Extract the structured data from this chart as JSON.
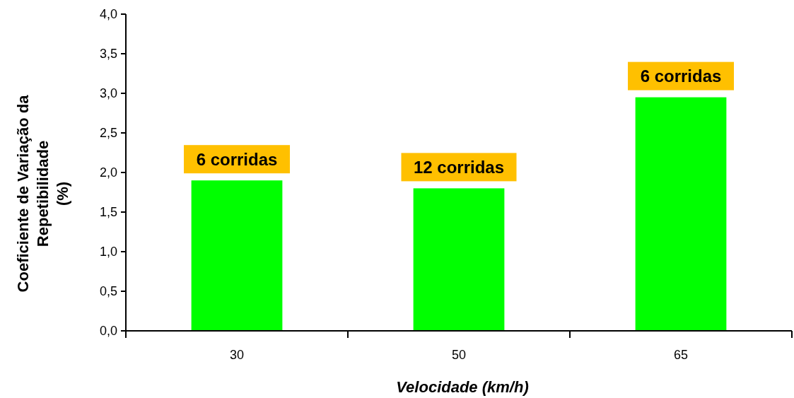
{
  "chart_data": {
    "type": "bar",
    "xlabel": "Velocidade (km/h)",
    "ylabel": "Coeficiente de Variação da\nRepetibilidade\n(%)",
    "categories": [
      "30",
      "50",
      "65"
    ],
    "values": [
      1.9,
      1.8,
      2.95
    ],
    "color": "#00ff00",
    "ylim": [
      0,
      4
    ],
    "yticks": [
      {
        "value": 0,
        "label": "0,0"
      },
      {
        "value": 0.5,
        "label": "0,5"
      },
      {
        "value": 1,
        "label": "1,0"
      },
      {
        "value": 1.5,
        "label": "1,5"
      },
      {
        "value": 2,
        "label": "2,0"
      },
      {
        "value": 2.5,
        "label": "2,5"
      },
      {
        "value": 3,
        "label": "3,0"
      },
      {
        "value": 3.5,
        "label": "3,5"
      },
      {
        "value": 4,
        "label": "4,0"
      }
    ],
    "annotations": [
      {
        "text": "6 corridas",
        "x": "30",
        "y": 1.9
      },
      {
        "text": "12 corridas",
        "x": "50",
        "y": 1.8
      },
      {
        "text": "6 corridas",
        "x": "65",
        "y": 2.95
      }
    ]
  }
}
